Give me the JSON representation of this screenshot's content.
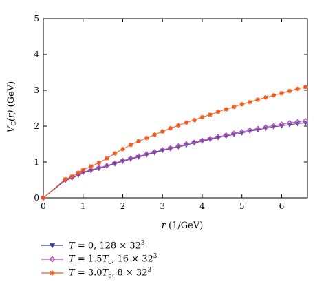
{
  "chart_data": {
    "type": "scatter",
    "xlabel": {
      "var": "r",
      "unit": " (1/GeV)"
    },
    "ylabel": {
      "prefix": "V",
      "sub": "C",
      "arg": "(r)",
      "unit": " (GeV)"
    },
    "xlim": [
      0,
      6.65
    ],
    "ylim": [
      0,
      5
    ],
    "xticks": [
      "0",
      "1",
      "2",
      "3",
      "4",
      "5",
      "6"
    ],
    "yticks": [
      "0",
      "1",
      "2",
      "3",
      "4",
      "5"
    ],
    "grid": false,
    "legend_position": "bottom-left",
    "series": [
      {
        "name": "T = 0, 128 × 32^3",
        "color": "#3a3f9e",
        "marker": "triangle-down",
        "x": [
          0.0,
          0.55,
          0.72,
          0.88,
          1.0,
          1.2,
          1.4,
          1.6,
          1.8,
          2.0,
          2.2,
          2.4,
          2.6,
          2.8,
          3.0,
          3.2,
          3.4,
          3.6,
          3.8,
          4.0,
          4.2,
          4.4,
          4.6,
          4.8,
          5.0,
          5.2,
          5.4,
          5.6,
          5.8,
          6.0,
          6.2,
          6.4,
          6.6
        ],
        "y": [
          0.0,
          0.48,
          0.55,
          0.63,
          0.7,
          0.76,
          0.82,
          0.88,
          0.95,
          1.02,
          1.08,
          1.14,
          1.2,
          1.26,
          1.32,
          1.37,
          1.42,
          1.47,
          1.53,
          1.58,
          1.63,
          1.68,
          1.72,
          1.77,
          1.81,
          1.86,
          1.9,
          1.94,
          1.98,
          2.01,
          2.04,
          2.07,
          2.09
        ]
      },
      {
        "name": "T = 1.5T_c, 16 × 32^3",
        "color": "#b04fb0",
        "marker": "diamond",
        "x": [
          0.0,
          0.55,
          0.72,
          0.88,
          1.0,
          1.2,
          1.4,
          1.6,
          1.8,
          2.0,
          2.2,
          2.4,
          2.6,
          2.8,
          3.0,
          3.2,
          3.4,
          3.6,
          3.8,
          4.0,
          4.2,
          4.4,
          4.6,
          4.8,
          5.0,
          5.2,
          5.4,
          5.6,
          5.8,
          6.0,
          6.2,
          6.4,
          6.6
        ],
        "y": [
          0.0,
          0.5,
          0.57,
          0.65,
          0.72,
          0.78,
          0.84,
          0.9,
          0.97,
          1.04,
          1.1,
          1.16,
          1.22,
          1.28,
          1.34,
          1.39,
          1.44,
          1.5,
          1.55,
          1.6,
          1.65,
          1.7,
          1.75,
          1.8,
          1.84,
          1.89,
          1.93,
          1.97,
          2.01,
          2.05,
          2.09,
          2.12,
          2.15
        ]
      },
      {
        "name": "T = 3.0T_c, 8 × 32^3",
        "color": "#f05a1e",
        "marker": "star",
        "x": [
          0.0,
          0.55,
          0.72,
          0.88,
          1.0,
          1.2,
          1.4,
          1.6,
          1.8,
          2.0,
          2.2,
          2.4,
          2.6,
          2.8,
          3.0,
          3.2,
          3.4,
          3.6,
          3.8,
          4.0,
          4.2,
          4.4,
          4.6,
          4.8,
          5.0,
          5.2,
          5.4,
          5.6,
          5.8,
          6.0,
          6.2,
          6.4,
          6.6
        ],
        "y": [
          0.0,
          0.52,
          0.6,
          0.7,
          0.78,
          0.88,
          0.98,
          1.1,
          1.24,
          1.36,
          1.48,
          1.58,
          1.67,
          1.76,
          1.85,
          1.94,
          2.02,
          2.1,
          2.17,
          2.25,
          2.32,
          2.4,
          2.47,
          2.54,
          2.61,
          2.67,
          2.74,
          2.8,
          2.86,
          2.92,
          2.98,
          3.04,
          3.09
        ]
      }
    ]
  },
  "legend": [
    {
      "color": "#3a3f9e",
      "marker": "triangle-down",
      "T": "T",
      "eq": " = 0, 128 × 32",
      "sup": "3",
      "Tc": "",
      "tail": ""
    },
    {
      "color": "#b04fb0",
      "marker": "diamond",
      "T": "T",
      "eq": " = 1.5",
      "Tc": "T",
      "Tc_sub": "c",
      "tail": ", 16 × 32",
      "sup": "3"
    },
    {
      "color": "#f05a1e",
      "marker": "star",
      "T": "T",
      "eq": " = 3.0",
      "Tc": "T",
      "Tc_sub": "c",
      "tail": ", 8 × 32",
      "sup": "3"
    }
  ]
}
